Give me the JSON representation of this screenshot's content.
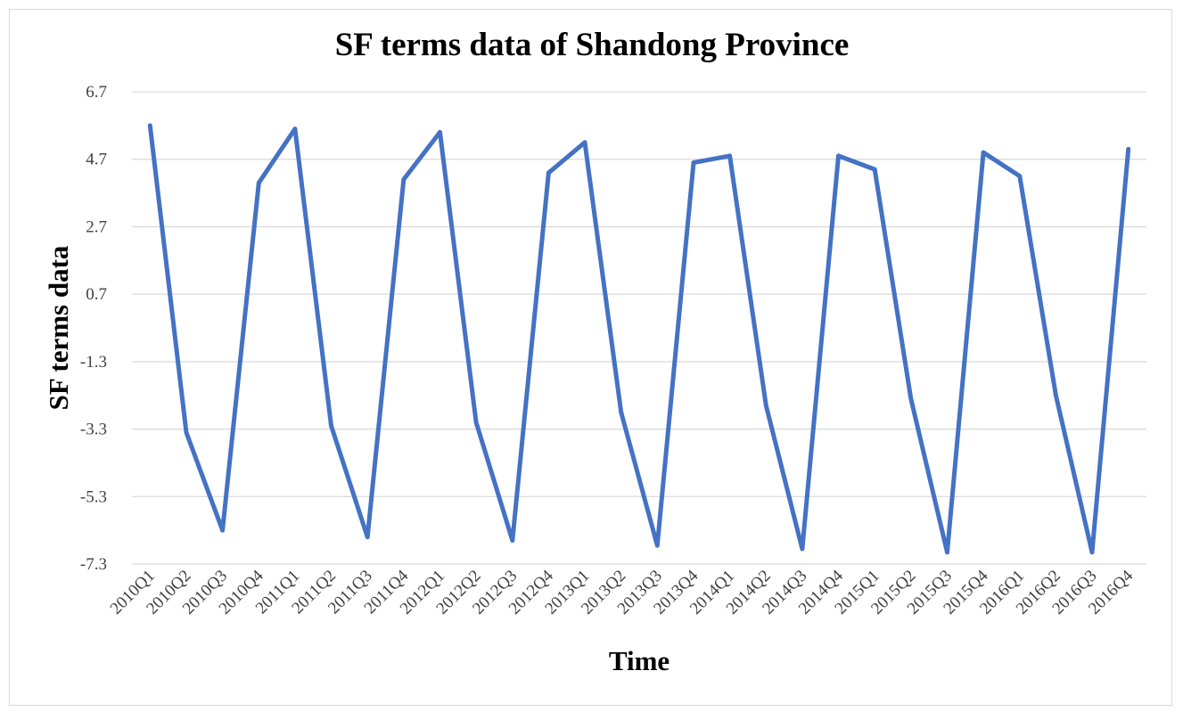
{
  "chart_data": {
    "type": "line",
    "title": "SF terms data of Shandong Province",
    "xlabel": "Time",
    "ylabel": "SF terms data",
    "ylim": [
      -7.3,
      6.7
    ],
    "yticks": [
      "6.7",
      "4.7",
      "2.7",
      "0.7",
      "-1.3",
      "-3.3",
      "-5.3",
      "-7.3"
    ],
    "grid": true,
    "legend": "none",
    "line_color": "#4472c4",
    "categories": [
      "2010Q1",
      "2010Q2",
      "2010Q3",
      "2010Q4",
      "2011Q1",
      "2011Q2",
      "2011Q3",
      "2011Q4",
      "2012Q1",
      "2012Q2",
      "2012Q3",
      "2012Q4",
      "2013Q1",
      "2013Q2",
      "2013Q3",
      "2013Q4",
      "2014Q1",
      "2014Q2",
      "2014Q3",
      "2014Q4",
      "2015Q1",
      "2015Q2",
      "2015Q3",
      "2015Q4",
      "2016Q1",
      "2016Q2",
      "2016Q3",
      "2016Q4"
    ],
    "series": [
      {
        "values": [
          5.7,
          -3.4,
          -6.3,
          4.0,
          5.6,
          -3.2,
          -6.5,
          4.1,
          5.5,
          -3.1,
          -6.6,
          4.3,
          5.2,
          -2.8,
          -6.75,
          4.6,
          4.8,
          -2.6,
          -6.85,
          4.8,
          4.4,
          -2.4,
          -6.95,
          4.9,
          4.2,
          -2.3,
          -6.95,
          5.0
        ]
      }
    ]
  }
}
